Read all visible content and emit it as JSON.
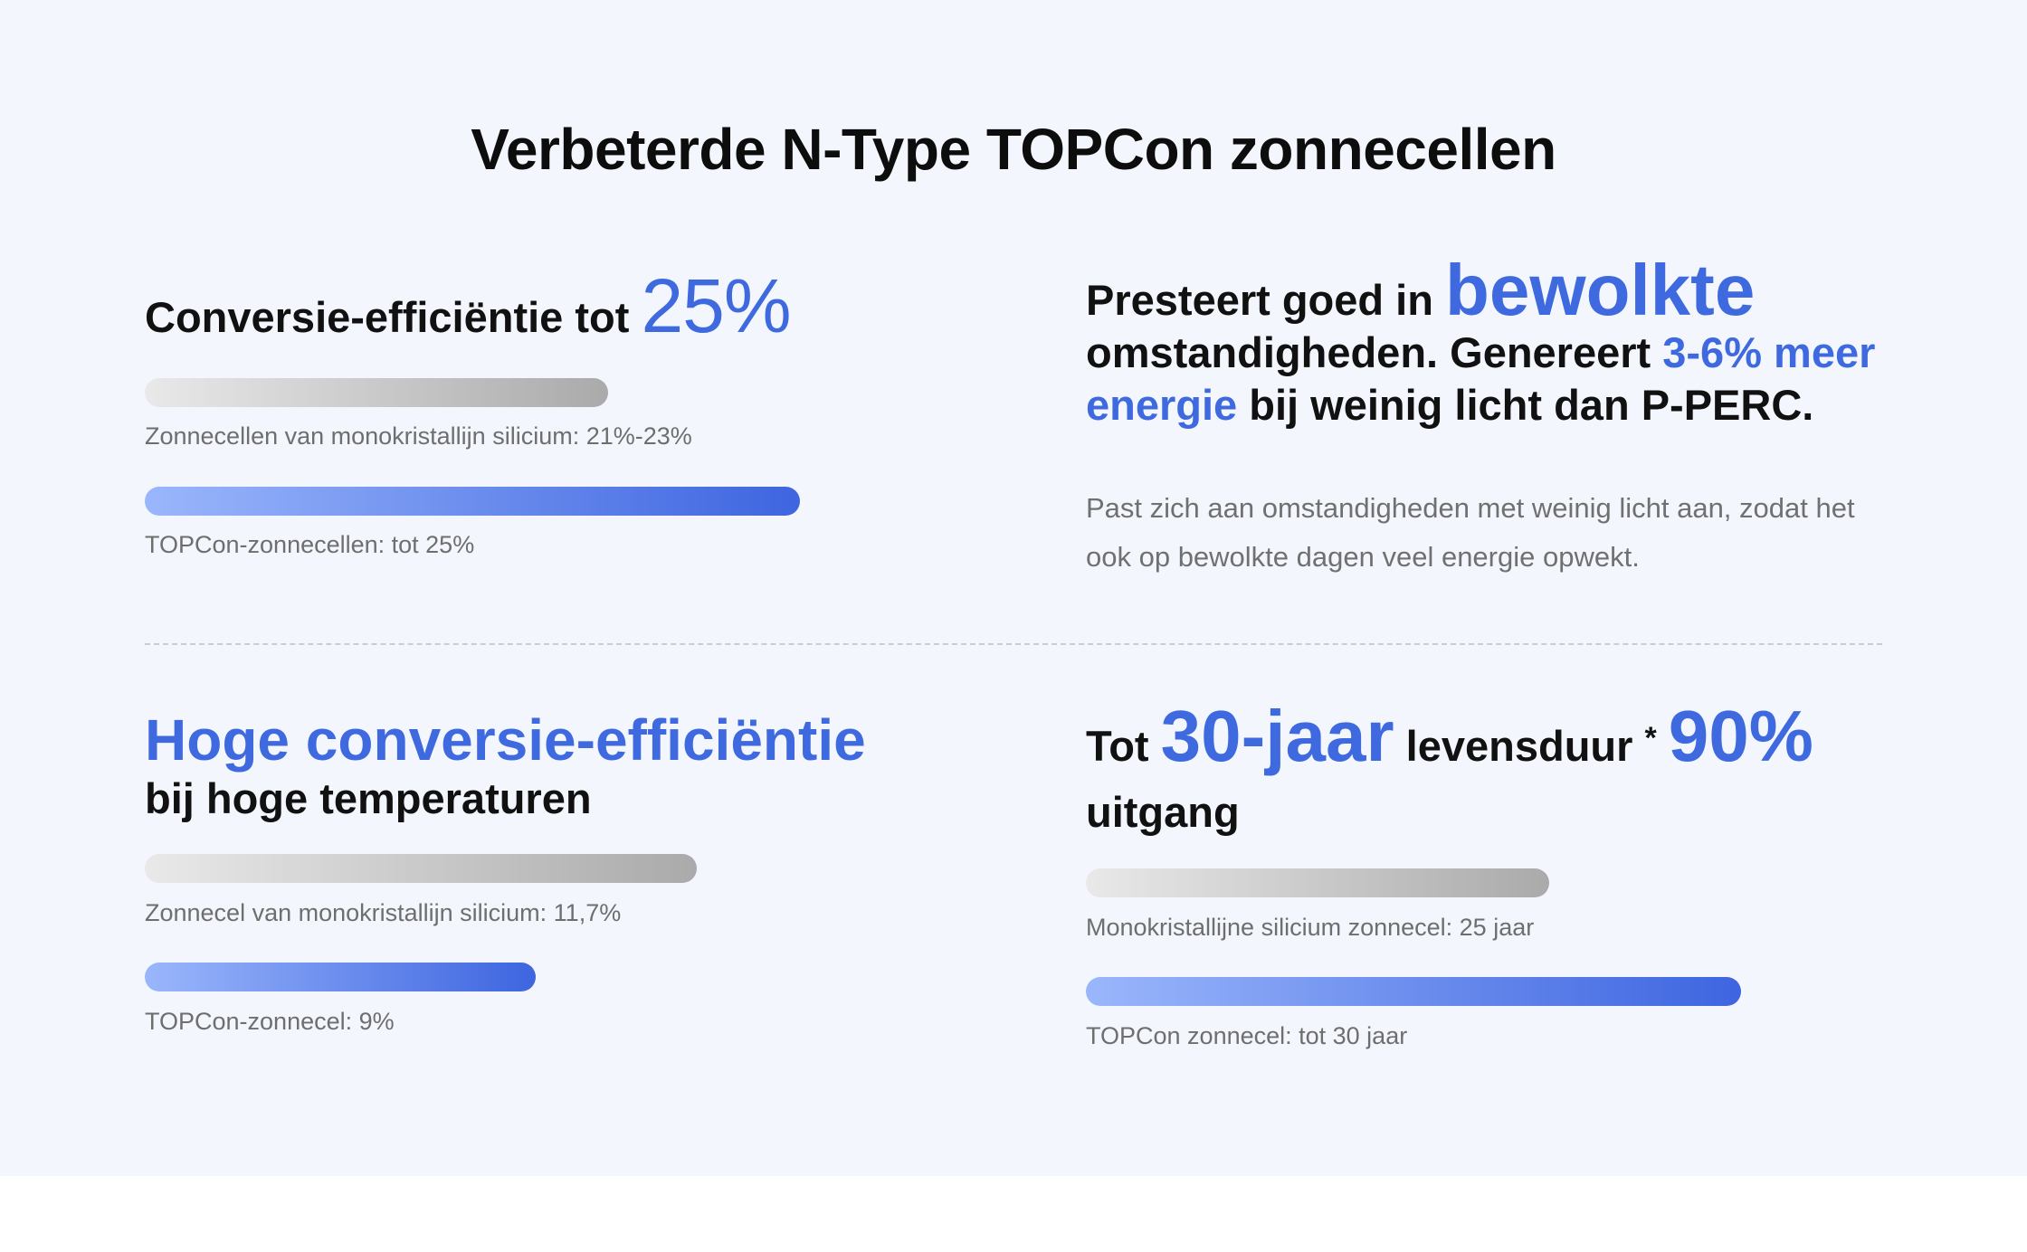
{
  "title": "Verbeterde N-Type TOPCon zonnecellen",
  "efficiency": {
    "heading_prefix": "Conversie-efficiëntie tot ",
    "heading_highlight": "25%",
    "bars": [
      {
        "label": "Zonnecellen van monokristallijn silicium: 21%-23%",
        "style": "grey",
        "level_pct": 23
      },
      {
        "label": "TOPCon-zonnecellen: tot 25%",
        "style": "blue",
        "level_pct": 25
      }
    ]
  },
  "cloudy": {
    "heading_prefix": "Presteert goed in ",
    "heading_highlight": "bewolkte",
    "heading_mid": "omstandigheden. Genereert ",
    "heading_highlight2": "3-6% meer energie",
    "heading_suffix": " bij weinig licht dan P-PERC.",
    "description": "Past zich aan omstandigheden met weinig licht aan, zodat het ook op bewolkte dagen veel energie opwekt."
  },
  "temperature": {
    "heading": "Hoge conversie-efficiëntie",
    "subheading": "bij hoge temperaturen",
    "bars": [
      {
        "label": "Zonnecel van monokristallijn silicium: 11,7%",
        "style": "grey",
        "value": 11.7
      },
      {
        "label": "TOPCon-zonnecel: 9%",
        "style": "blue",
        "value": 9
      }
    ]
  },
  "lifespan": {
    "heading_prefix": "Tot ",
    "heading_highlight": "30-jaar",
    "heading_mid": " levensduur ",
    "asterisk": "*",
    "heading_highlight2": "90%",
    "subheading": "uitgang",
    "bars": [
      {
        "label": "Monokristallijne silicium zonnecel: 25 jaar",
        "style": "grey",
        "value": 25
      },
      {
        "label": "TOPCon zonnecel: tot 30 jaar",
        "style": "blue",
        "value": 30
      }
    ]
  },
  "colors": {
    "accent": "#3f69de",
    "background": "#f3f7fd",
    "caption": "#6e6e6e"
  }
}
